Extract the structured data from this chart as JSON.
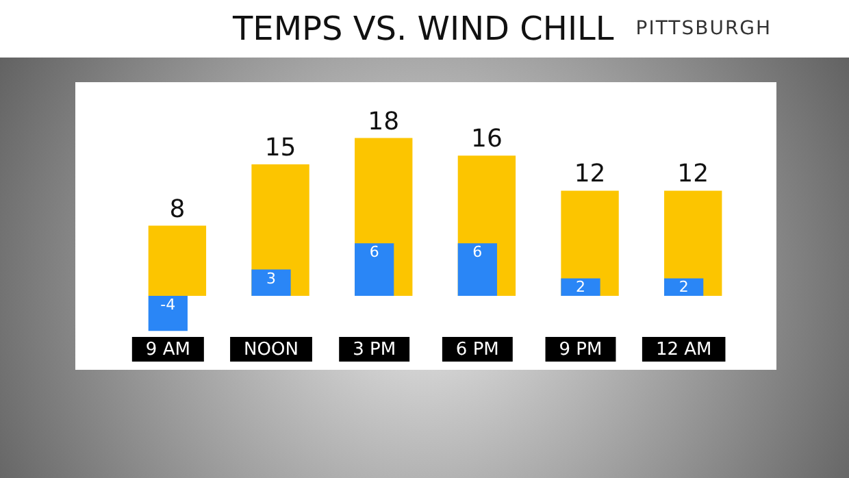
{
  "chart_data": {
    "type": "bar",
    "title": "TEMPS VS. WIND CHILL",
    "subtitle": "PITTSBURGH",
    "categories": [
      "9 AM",
      "NOON",
      "3 PM",
      "6 PM",
      "9 PM",
      "12 AM"
    ],
    "series": [
      {
        "color": "#fcc500",
        "values": [
          8,
          15,
          18,
          16,
          12,
          12
        ]
      },
      {
        "color": "#2a86f6",
        "values": [
          -4,
          3,
          6,
          6,
          2,
          2
        ]
      }
    ],
    "data_labels": true,
    "grid": false
  }
}
